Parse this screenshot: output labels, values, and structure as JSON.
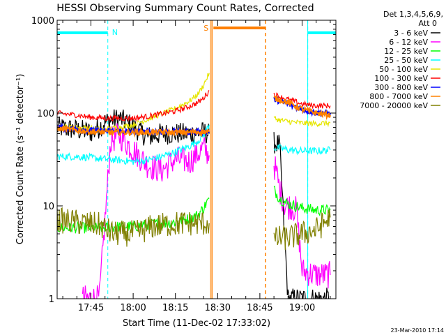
{
  "chart_data": {
    "type": "line",
    "title": "HESSI Observing Summary Count Rates, Corrected",
    "xlabel": "Start Time (11-Dec-02 17:33:02)",
    "ylabel": "Corrected Count Rate (s⁻¹ detector⁻¹)",
    "x_ticks": [
      "17:45",
      "18:00",
      "18:15",
      "18:30",
      "18:45",
      "19:00"
    ],
    "x_tick_minutes": [
      705,
      720,
      735,
      750,
      765,
      780
    ],
    "xlim_minutes": [
      693,
      792
    ],
    "y_scale": "log",
    "ylim": [
      1,
      1000
    ],
    "y_ticks": [
      "1",
      "10",
      "100",
      "1000"
    ],
    "y_tick_values": [
      1,
      10,
      100,
      1000
    ],
    "grid": false,
    "legend_position": "top-right",
    "legend_header": [
      "Det 1,3,4,5,6,9,",
      "Att 0"
    ],
    "footer": "23-Mar-2010 17:14",
    "flags": {
      "night_label": "N",
      "saa_label": "S",
      "night_intervals": [
        [
          693,
          711
        ],
        [
          782,
          792
        ]
      ],
      "saa_interval": [
        748,
        767
      ],
      "night_color": "#00ffff",
      "saa_color": "#ff8000"
    },
    "data_gap": [
      747.5,
      770
    ],
    "series": [
      {
        "name": "3 - 6 keV",
        "color": "#000000",
        "x": [
          693,
          700,
          706,
          710,
          715,
          720,
          725,
          730,
          735,
          740,
          745,
          747,
          770,
          772,
          775,
          780,
          785,
          790
        ],
        "y": [
          70,
          66,
          62,
          80,
          88,
          72,
          55,
          60,
          60,
          60,
          62,
          60,
          48,
          45,
          1,
          1,
          1,
          1
        ]
      },
      {
        "name": "6 - 12 keV",
        "color": "#ff00ff",
        "x": [
          702,
          708,
          710,
          712,
          715,
          720,
          725,
          730,
          735,
          740,
          745,
          747,
          770,
          771,
          772,
          774,
          776,
          778,
          780,
          785,
          790
        ],
        "y": [
          1,
          1,
          7,
          50,
          58,
          40,
          28,
          24,
          32,
          30,
          42,
          35,
          28,
          22,
          15,
          10,
          10,
          9,
          2,
          1.8,
          1.8
        ]
      },
      {
        "name": "12 - 25 keV",
        "color": "#00ff00",
        "x": [
          693,
          700,
          705,
          710,
          715,
          720,
          725,
          730,
          735,
          740,
          743,
          745,
          747,
          770,
          772,
          775,
          780,
          785,
          790
        ],
        "y": [
          5.8,
          5.8,
          5.8,
          5.8,
          6,
          6,
          6.3,
          6.5,
          6.7,
          7.3,
          8,
          9.5,
          12,
          15,
          12,
          10.5,
          9.5,
          9,
          9
        ]
      },
      {
        "name": "25 - 50 keV",
        "color": "#00ffff",
        "x": [
          693,
          700,
          705,
          710,
          715,
          720,
          725,
          730,
          735,
          740,
          743,
          745,
          747,
          770,
          772,
          775,
          780,
          785,
          790
        ],
        "y": [
          34,
          34,
          33,
          32,
          31,
          30,
          31,
          34,
          38,
          44,
          50,
          58,
          75,
          42,
          42,
          40,
          39,
          39,
          40
        ]
      },
      {
        "name": "50 - 100 keV",
        "color": "#e6e600",
        "x": [
          693,
          700,
          705,
          710,
          715,
          720,
          725,
          730,
          735,
          740,
          743,
          745,
          747,
          770,
          772,
          775,
          780,
          785,
          790
        ],
        "y": [
          72,
          70,
          68,
          67,
          70,
          75,
          85,
          98,
          112,
          135,
          160,
          200,
          270,
          88,
          84,
          81,
          78,
          77,
          78
        ]
      },
      {
        "name": "100 - 300 keV",
        "color": "#ff0000",
        "x": [
          693,
          700,
          705,
          710,
          715,
          720,
          725,
          730,
          735,
          740,
          743,
          745,
          747,
          770,
          772,
          775,
          780,
          785,
          790
        ],
        "y": [
          100,
          95,
          90,
          88,
          88,
          88,
          92,
          98,
          105,
          118,
          130,
          145,
          175,
          160,
          150,
          140,
          125,
          120,
          120
        ]
      },
      {
        "name": "300 - 800 keV",
        "color": "#0000ff",
        "x": [
          693,
          700,
          705,
          710,
          715,
          720,
          725,
          730,
          735,
          740,
          745,
          747,
          770,
          772,
          775,
          780,
          785,
          790
        ],
        "y": [
          70,
          67,
          65,
          64,
          64,
          63,
          63,
          63,
          63,
          63,
          63,
          63,
          140,
          135,
          125,
          110,
          100,
          100
        ]
      },
      {
        "name": "800 - 7000 keV",
        "color": "#ff8000",
        "x": [
          693,
          700,
          705,
          710,
          715,
          720,
          725,
          730,
          735,
          740,
          745,
          747,
          770,
          772,
          775,
          780,
          785,
          790
        ],
        "y": [
          68,
          65,
          63,
          62,
          62,
          62,
          62,
          62,
          62,
          62,
          63,
          63,
          145,
          140,
          130,
          110,
          100,
          95
        ]
      },
      {
        "name": "7000 - 20000 keV",
        "color": "#808000",
        "x": [
          693,
          698,
          703,
          708,
          713,
          718,
          722,
          727,
          732,
          737,
          742,
          745,
          747,
          770,
          772,
          775,
          780,
          785,
          790
        ],
        "y": [
          7,
          6.8,
          6.5,
          6.2,
          5,
          5,
          5.2,
          6,
          6.3,
          6.5,
          6.5,
          6.5,
          6.5,
          4.2,
          4.5,
          4.5,
          5,
          5.5,
          7.5
        ]
      }
    ]
  }
}
